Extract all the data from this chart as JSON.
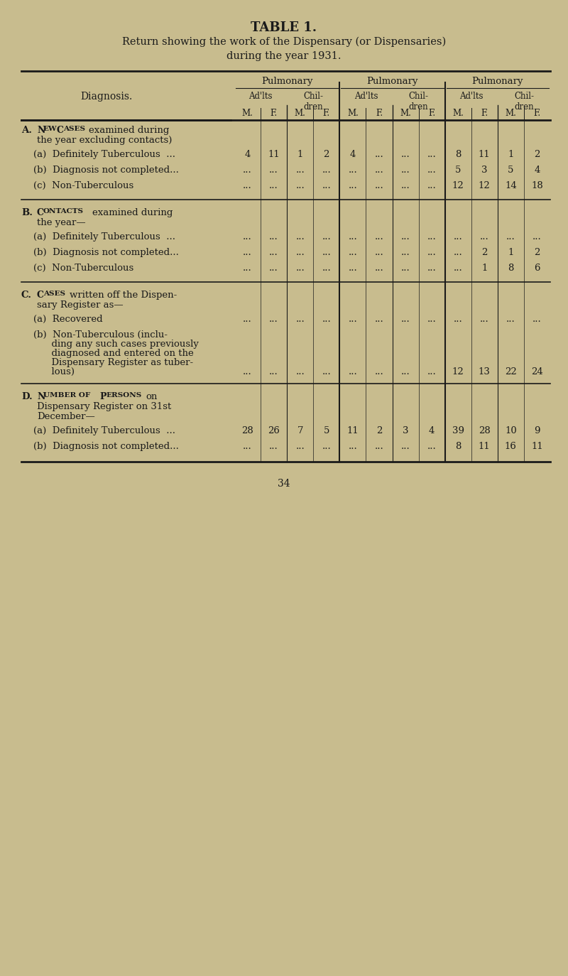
{
  "title": "TABLE 1.",
  "subtitle": "Return showing the work of the Dispensary (or Dispensaries)\nduring the year 1931.",
  "bg_color": "#c8bc8e",
  "text_color": "#1a1a1a",
  "col_groups": [
    "Pulmonary",
    "Pulmonary",
    "Pulmonary"
  ],
  "col_subgroups": [
    [
      "Ad'lts",
      "Chil-\ndren"
    ],
    [
      "Ad'lts",
      "Chil-\ndren"
    ],
    [
      "Ad'lts",
      "Chil-\ndren"
    ]
  ],
  "col_headers": [
    "M.",
    "F.",
    "M.",
    "F.",
    "M.",
    "F.",
    "M.",
    "F.",
    "M.",
    "F.",
    "M.",
    "F."
  ],
  "sections": [
    {
      "label": "A.  NEW CASES examined during\n     the year excluding contacts)",
      "label_type": "section_header",
      "rows": [
        {
          "label": "    (a)  Definitely Tuberculous  ...",
          "values": [
            "4",
            "11",
            "1",
            "2",
            "4",
            "...",
            "...",
            "...",
            "8",
            "11",
            "1",
            "2"
          ]
        },
        {
          "label": "    (b)  Diagnosis not completed...",
          "values": [
            "...",
            "...",
            "...",
            "...",
            "...",
            "...",
            "...",
            "...",
            "5",
            "3",
            "5",
            "4"
          ]
        },
        {
          "label": "    (c)  Non-Tuberculous",
          "values": [
            "...",
            "...",
            "...",
            "...",
            "...",
            "...",
            "...",
            "...",
            "12",
            "12",
            "14",
            "18"
          ]
        }
      ]
    },
    {
      "label": "B.  CONTACTS examined during\n     the year—",
      "label_type": "section_header",
      "rows": [
        {
          "label": "    (a)  Definitely Tuberculous  ...",
          "values": [
            "...",
            "...",
            "...",
            "...",
            "...",
            "...",
            "...",
            "...",
            "...",
            "...",
            "...",
            "..."
          ]
        },
        {
          "label": "    (b)  Diagnosis not completed...",
          "values": [
            "...",
            "...",
            "...",
            "...",
            "...",
            "...",
            "...",
            "...",
            "...",
            "2",
            "1",
            "2"
          ]
        },
        {
          "label": "    (c)  Non-Tuberculous",
          "values": [
            "...",
            "...",
            "...",
            "...",
            "...",
            "...",
            "...",
            "...",
            "...",
            "1",
            "8",
            "6"
          ]
        }
      ]
    },
    {
      "label": "C.  CASES written off the Dispen-\n     sary Register as—",
      "label_type": "section_header",
      "rows": [
        {
          "label": "    (a)  Recovered",
          "values": [
            "...",
            "...",
            "...",
            "...",
            "...",
            "...",
            "...",
            "...",
            "...",
            "...",
            "...",
            "..."
          ]
        },
        {
          "label": "    (b)  Non-Tuberculous (inclu-\n          ding any such cases previously\n          diagnosed and entered on the\n          Dispensary Register as tuber-\n          lous)",
          "values": [
            "...",
            "...",
            "...",
            "...",
            "...",
            "...",
            "...",
            "...",
            "12",
            "13",
            "22",
            "24"
          ]
        }
      ]
    },
    {
      "label": "D.  NUMBER OF PERSONS on\n     Dispensary Register on 31st\n     December—",
      "label_type": "section_header",
      "rows": [
        {
          "label": "    (a)  Definitely Tuberculous  ...",
          "values": [
            "28",
            "26",
            "7",
            "5",
            "11",
            "2",
            "3",
            "4",
            "39",
            "28",
            "10",
            "9"
          ]
        },
        {
          "label": "    (b)  Diagnosis not completed...",
          "values": [
            "...",
            "...",
            "...",
            "...",
            "...",
            "...",
            "...",
            "...",
            "8",
            "11",
            "16",
            "11"
          ]
        }
      ]
    }
  ],
  "footer": "34"
}
